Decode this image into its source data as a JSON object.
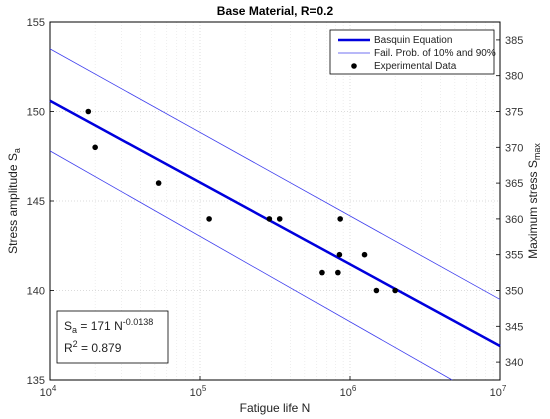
{
  "chart_data": {
    "type": "scatter",
    "title": "Base Material, R=0.2",
    "xlabel": "Fatigue life N",
    "ylabel_base": "Stress amplitude S",
    "ylabel_sub": "a",
    "y2label_base": "Maximum stress S",
    "y2label_sub": "max",
    "x_scale": "log",
    "xlim": [
      10000,
      10000000
    ],
    "ylim": [
      135,
      155
    ],
    "y2lim": [
      337.5,
      387.5
    ],
    "grid": true,
    "legend_position": "top-right",
    "x_ticks": [
      {
        "value": 10000,
        "base": "10",
        "exp": "4"
      },
      {
        "value": 100000,
        "base": "10",
        "exp": "5"
      },
      {
        "value": 1000000,
        "base": "10",
        "exp": "6"
      },
      {
        "value": 10000000,
        "base": "10",
        "exp": "7"
      }
    ],
    "y_ticks": [
      135,
      140,
      145,
      150,
      155
    ],
    "y2_ticks": [
      340,
      345,
      350,
      355,
      360,
      365,
      370,
      375,
      380,
      385
    ],
    "series": [
      {
        "name": "Basquin Equation",
        "kind": "line",
        "color": "#0000dd",
        "points": [
          [
            10000,
            150.6
          ],
          [
            10000000,
            136.9
          ]
        ]
      },
      {
        "name": "Fail. Prob. of 10% and 90%",
        "kind": "band",
        "color": "#4040ee",
        "upper": [
          [
            10000,
            153.5
          ],
          [
            10000000,
            139.5
          ]
        ],
        "lower": [
          [
            10000,
            147.8
          ],
          [
            4800000,
            135.0
          ]
        ]
      },
      {
        "name": "Experimental Data",
        "kind": "scatter",
        "color": "#000000",
        "points": [
          [
            18000,
            150
          ],
          [
            20000,
            148
          ],
          [
            53000,
            146
          ],
          [
            115000,
            144
          ],
          [
            290000,
            144
          ],
          [
            340000,
            144
          ],
          [
            650000,
            141
          ],
          [
            830000,
            141
          ],
          [
            850000,
            142
          ],
          [
            860000,
            144
          ],
          [
            1250000,
            142
          ],
          [
            1500000,
            140
          ],
          [
            2000000,
            140
          ]
        ]
      }
    ],
    "annotation": {
      "line1_base": "S",
      "line1_sub": "a",
      "line1_eq": " = 171 N",
      "line1_exp": "-0.0138",
      "line2_base": "R",
      "line2_sup": "2",
      "line2_eq": " = 0.879"
    }
  }
}
